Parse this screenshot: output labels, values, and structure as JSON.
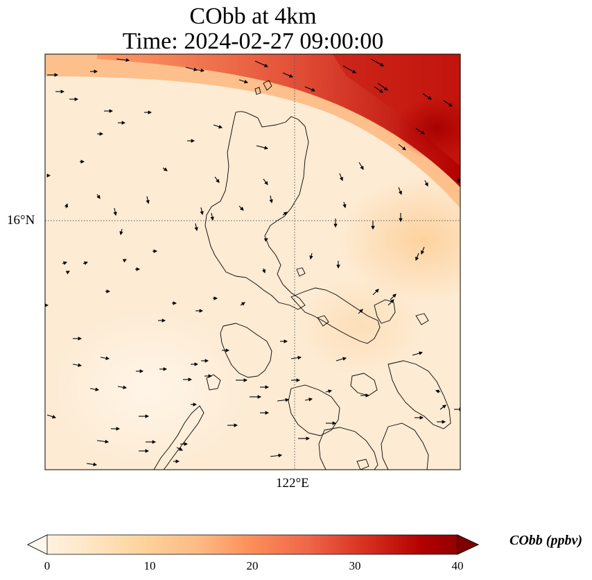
{
  "title": {
    "line1": "CObb at 4km",
    "line2": "Time: 2024-02-27 09:00:00"
  },
  "axes": {
    "lat_label": "16°N",
    "lon_label": "122°E"
  },
  "colorbar": {
    "title": "CObb (ppbv)",
    "ticks": [
      "0",
      "10",
      "20",
      "30",
      "40"
    ],
    "range": [
      0,
      40
    ],
    "colormap": "OrRd",
    "colors": [
      "#fff7ec",
      "#fee8c8",
      "#fdd49e",
      "#fdbb84",
      "#fc8d59",
      "#ef6548",
      "#d7301f",
      "#b30000",
      "#7f0000"
    ]
  },
  "map": {
    "background_color": "#fdebd3",
    "gridline_style": "dotted",
    "features": [
      "coastlines",
      "wind-vectors",
      "concentration-field"
    ]
  }
}
